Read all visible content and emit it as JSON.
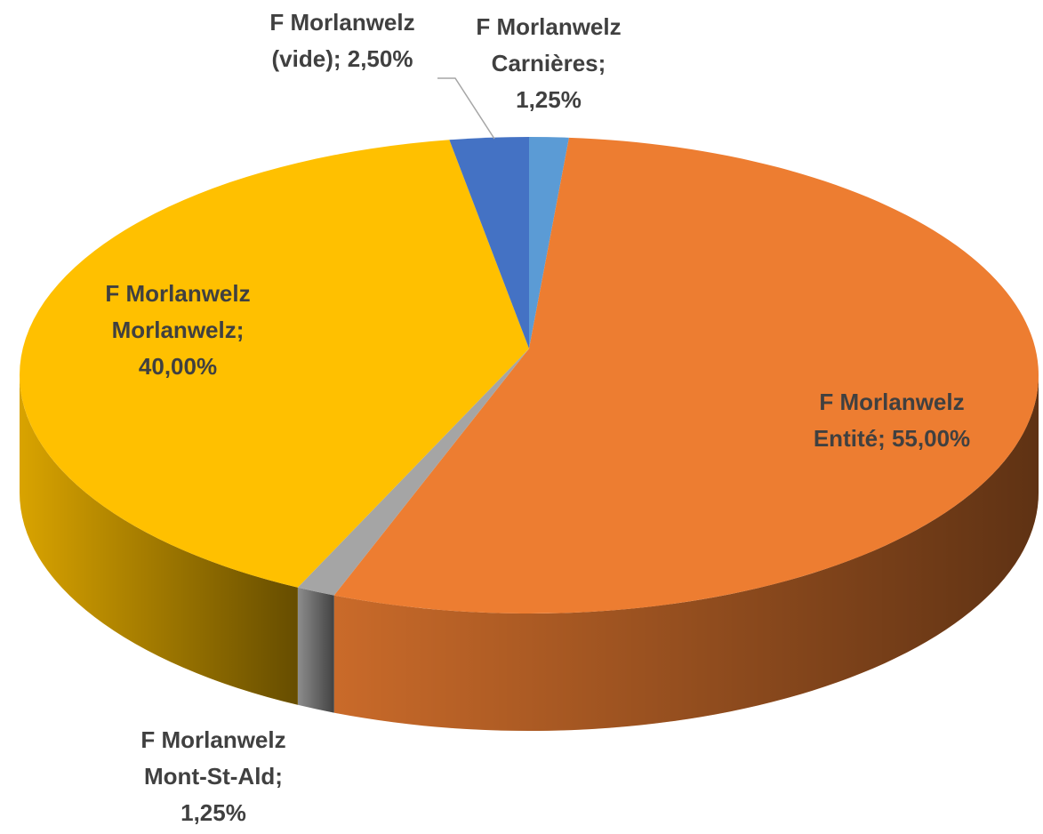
{
  "chart_data": {
    "type": "pie3d",
    "categories": [
      "F Morlanwelz Carnières",
      "F Morlanwelz Entité",
      "F Morlanwelz Mont-St-Ald",
      "F Morlanwelz Morlanwelz",
      "F Morlanwelz (vide)"
    ],
    "values": [
      1.25,
      55,
      1.25,
      40,
      2.5
    ],
    "value_labels": [
      "1,25%",
      "55,00%",
      "1,25%",
      "40,00%",
      "2,50%"
    ],
    "label_separator": "; ",
    "colors": [
      "#5b9bd5",
      "#ed7d31",
      "#a5a5a5",
      "#ffc000",
      "#4472c4"
    ]
  }
}
